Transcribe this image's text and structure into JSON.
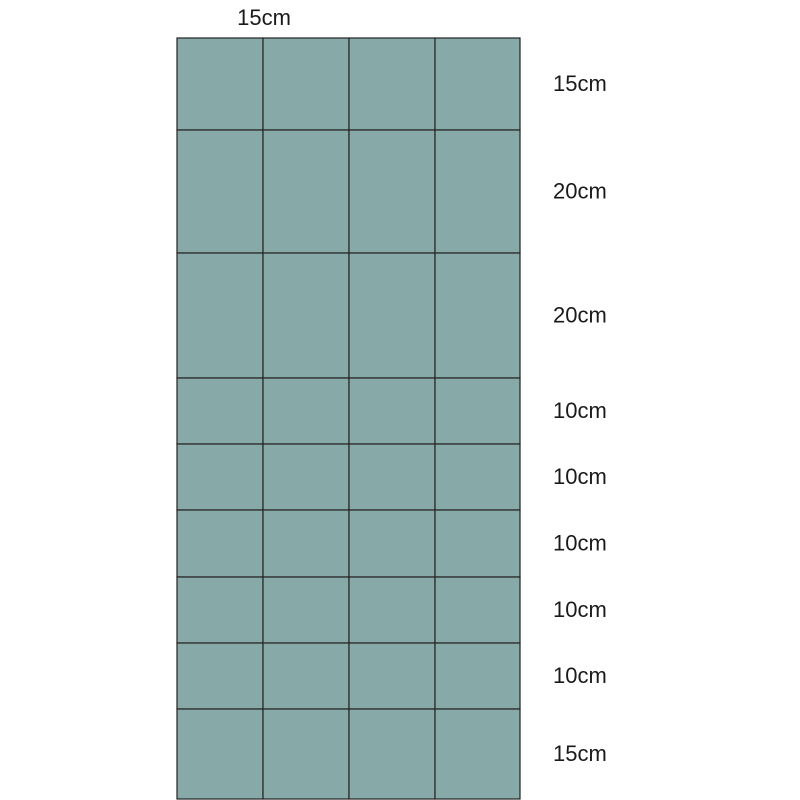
{
  "column_label": "15cm",
  "rows": [
    {
      "label": "15cm"
    },
    {
      "label": "20cm"
    },
    {
      "label": "20cm"
    },
    {
      "label": "10cm"
    },
    {
      "label": "10cm"
    },
    {
      "label": "10cm"
    },
    {
      "label": "10cm"
    },
    {
      "label": "10cm"
    },
    {
      "label": "15cm"
    }
  ]
}
